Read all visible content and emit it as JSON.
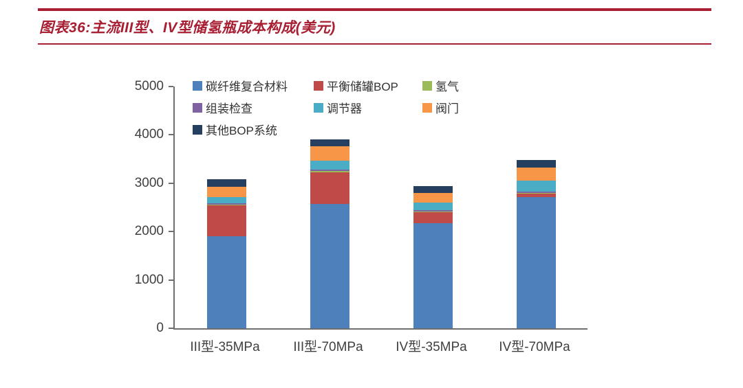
{
  "header": {
    "title": "图表36:主流III型、IV型储氢瓶成本构成(美元)"
  },
  "chart_data": {
    "type": "bar",
    "subtype": "stacked",
    "title": "主流III型、IV型储氢瓶成本构成(美元)",
    "categories": [
      "III型-35MPa",
      "III型-70MPa",
      "IV型-35MPa",
      "IV型-70MPa"
    ],
    "series": [
      {
        "name": "碳纤维复合材料",
        "color": "#4E80BC",
        "values": [
          1900,
          2570,
          2170,
          2720
        ]
      },
      {
        "name": "平衡储罐BOP",
        "color": "#BE4B48",
        "values": [
          640,
          660,
          230,
          70
        ]
      },
      {
        "name": "氢气",
        "color": "#9BBB59",
        "values": [
          20,
          20,
          15,
          15
        ]
      },
      {
        "name": "组装检查",
        "color": "#7F63A1",
        "values": [
          30,
          30,
          25,
          20
        ]
      },
      {
        "name": "调节器",
        "color": "#4BACC6",
        "values": [
          130,
          180,
          160,
          230
        ]
      },
      {
        "name": "阀门",
        "color": "#F79646",
        "values": [
          210,
          300,
          200,
          270
        ]
      },
      {
        "name": "其他BOP系统",
        "color": "#243F60",
        "values": [
          150,
          150,
          140,
          155
        ]
      }
    ],
    "ylim": [
      0,
      5000
    ],
    "yticks": [
      0,
      1000,
      2000,
      3000,
      4000,
      5000
    ],
    "xlabel": "",
    "ylabel": "",
    "grid": false,
    "legend_position": "top-inside"
  }
}
